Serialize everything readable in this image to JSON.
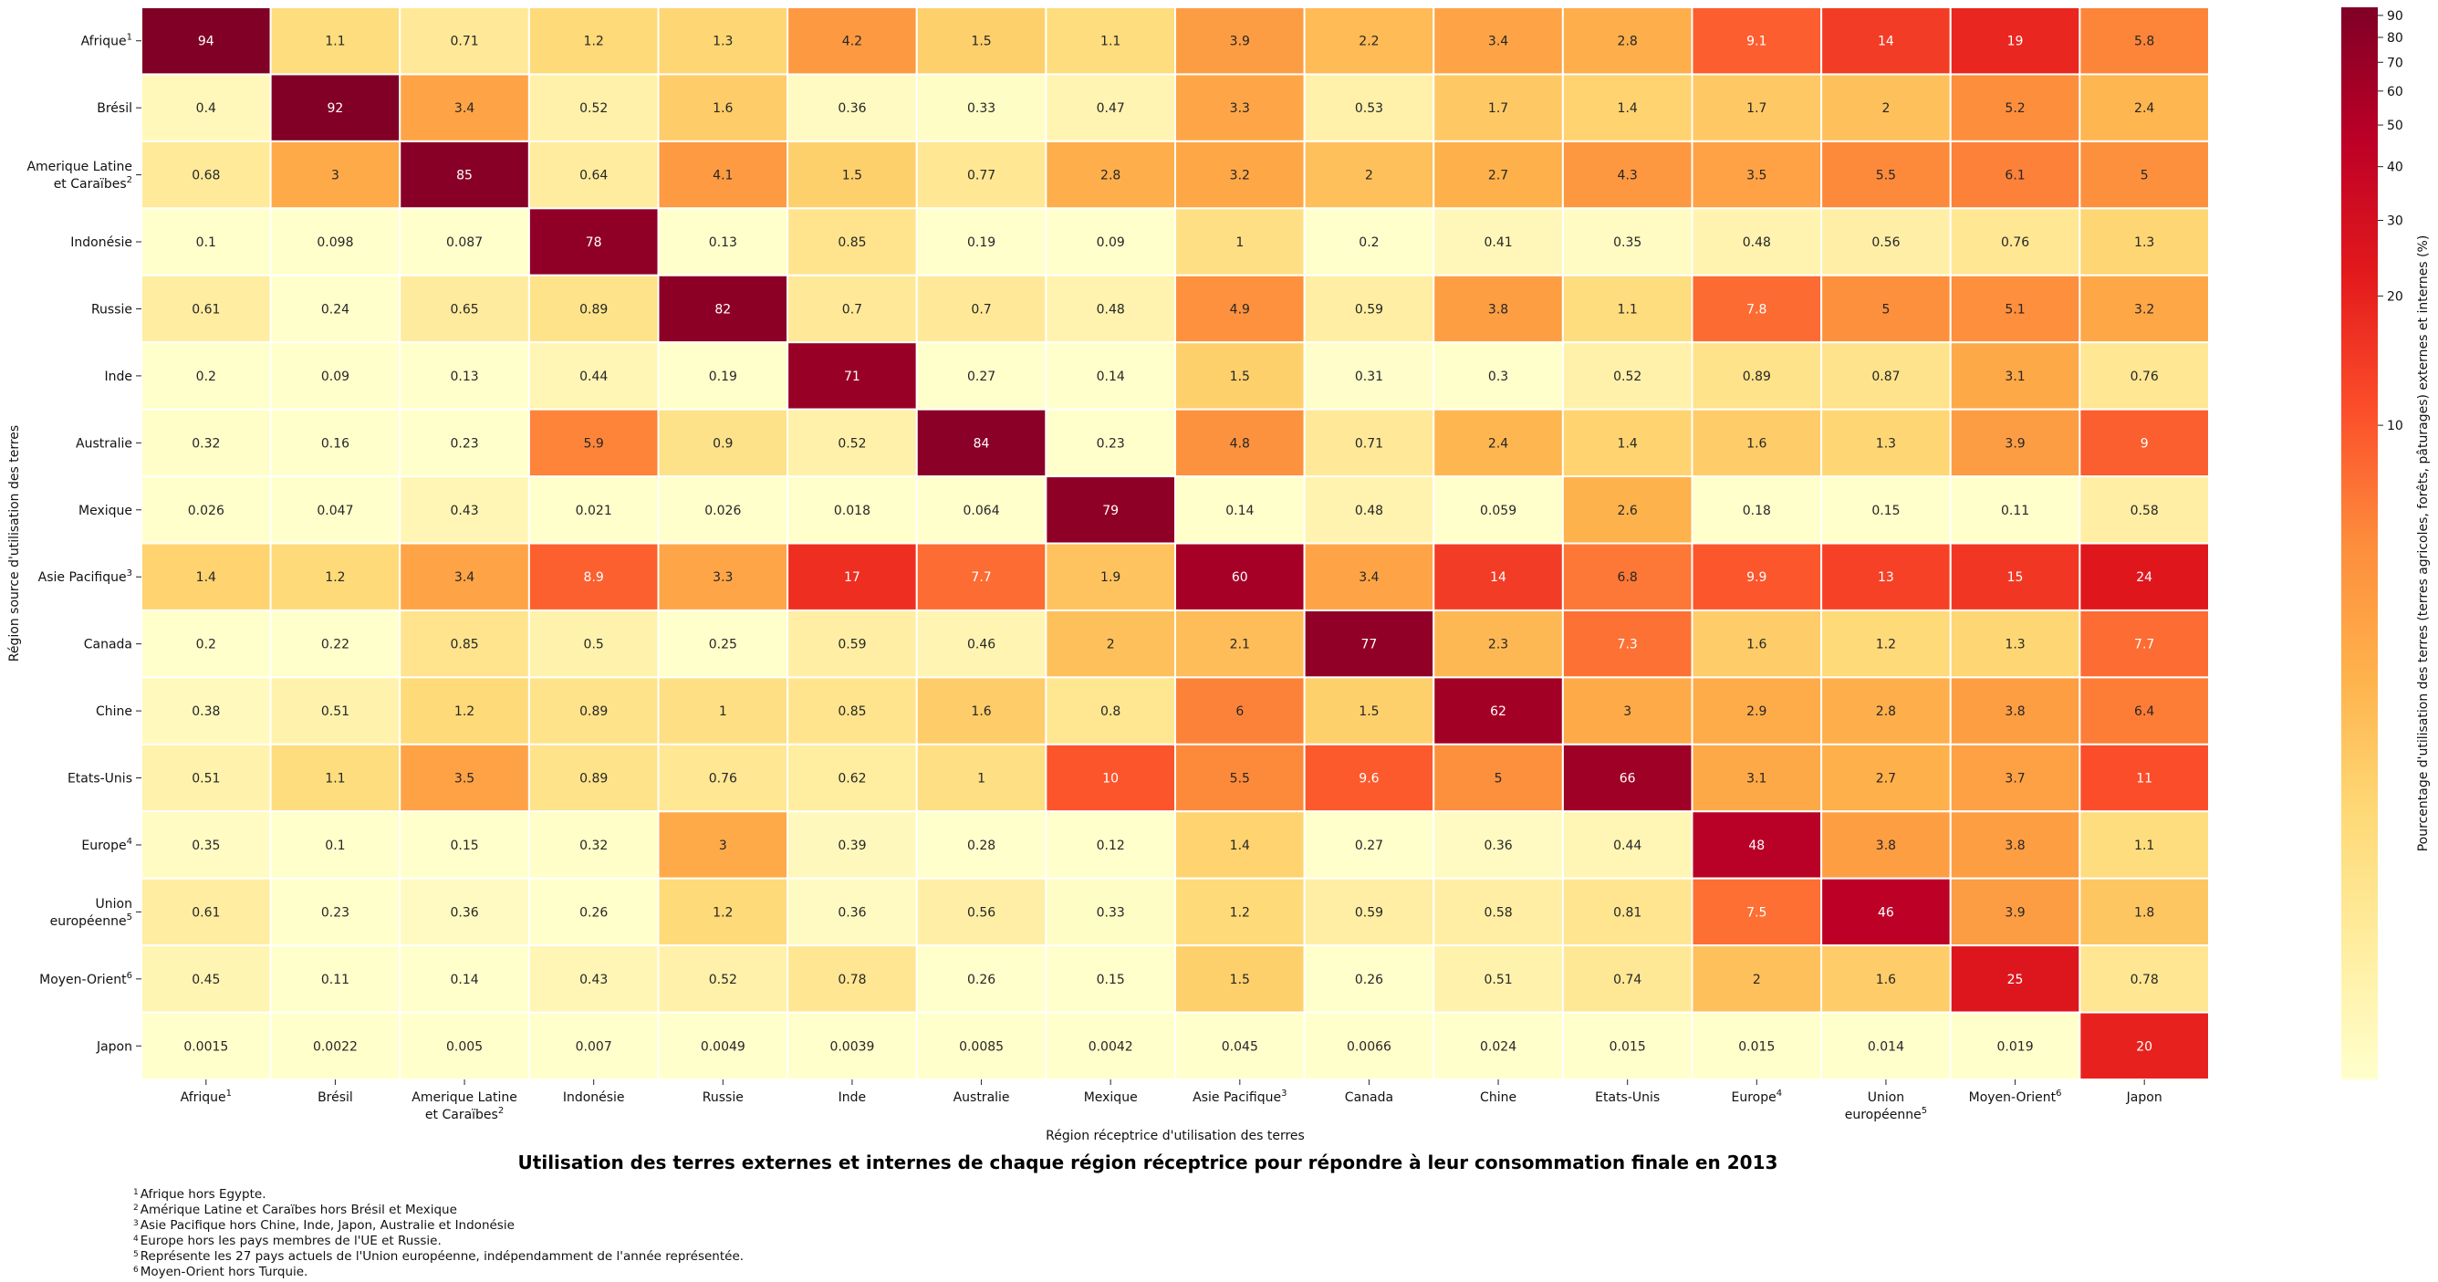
{
  "chart_data": {
    "type": "heatmap",
    "title": "Utilisation des terres externes et internes de chaque région réceptrice pour répondre à leur consommation finale en 2013",
    "xlabel": "Région réceptrice d'utilisation des terres",
    "ylabel": "Région source d'utilisation des terres",
    "colorbar_label": "Pourcentage d'utilisation des terres (terres agricoles, forêts, pâturages) externes et internes (%)",
    "colorbar_ticks": [
      10,
      20,
      30,
      40,
      50,
      60,
      70,
      80,
      90
    ],
    "colorbar_scale": "log",
    "colormap": "YlOrRd",
    "rows": [
      {
        "label": [
          "Afrique"
        ],
        "sup": "1"
      },
      {
        "label": [
          "Brésil"
        ],
        "sup": ""
      },
      {
        "label": [
          "Amerique Latine",
          "et Caraïbes"
        ],
        "sup": "2"
      },
      {
        "label": [
          "Indonésie"
        ],
        "sup": ""
      },
      {
        "label": [
          "Russie"
        ],
        "sup": ""
      },
      {
        "label": [
          "Inde"
        ],
        "sup": ""
      },
      {
        "label": [
          "Australie"
        ],
        "sup": ""
      },
      {
        "label": [
          "Mexique"
        ],
        "sup": ""
      },
      {
        "label": [
          "Asie Pacifique"
        ],
        "sup": "3"
      },
      {
        "label": [
          "Canada"
        ],
        "sup": ""
      },
      {
        "label": [
          "Chine"
        ],
        "sup": ""
      },
      {
        "label": [
          "Etats-Unis"
        ],
        "sup": ""
      },
      {
        "label": [
          "Europe"
        ],
        "sup": "4"
      },
      {
        "label": [
          "Union",
          "européenne"
        ],
        "sup": "5"
      },
      {
        "label": [
          "Moyen-Orient"
        ],
        "sup": "6"
      },
      {
        "label": [
          "Japon"
        ],
        "sup": ""
      }
    ],
    "columns": [
      {
        "label": [
          "Afrique"
        ],
        "sup": "1"
      },
      {
        "label": [
          "Brésil"
        ],
        "sup": ""
      },
      {
        "label": [
          "Amerique Latine",
          "et Caraïbes"
        ],
        "sup": "2"
      },
      {
        "label": [
          "Indonésie"
        ],
        "sup": ""
      },
      {
        "label": [
          "Russie"
        ],
        "sup": ""
      },
      {
        "label": [
          "Inde"
        ],
        "sup": ""
      },
      {
        "label": [
          "Australie"
        ],
        "sup": ""
      },
      {
        "label": [
          "Mexique"
        ],
        "sup": ""
      },
      {
        "label": [
          "Asie Pacifique"
        ],
        "sup": "3"
      },
      {
        "label": [
          "Canada"
        ],
        "sup": ""
      },
      {
        "label": [
          "Chine"
        ],
        "sup": ""
      },
      {
        "label": [
          "Etats-Unis"
        ],
        "sup": ""
      },
      {
        "label": [
          "Europe"
        ],
        "sup": "4"
      },
      {
        "label": [
          "Union",
          "européenne"
        ],
        "sup": "5"
      },
      {
        "label": [
          "Moyen-Orient"
        ],
        "sup": "6"
      },
      {
        "label": [
          "Japon"
        ],
        "sup": ""
      }
    ],
    "values": [
      [
        "94",
        "1.1",
        "0.71",
        "1.2",
        "1.3",
        "4.2",
        "1.5",
        "1.1",
        "3.9",
        "2.2",
        "3.4",
        "2.8",
        "9.1",
        "14",
        "19",
        "5.8"
      ],
      [
        "0.4",
        "92",
        "3.4",
        "0.52",
        "1.6",
        "0.36",
        "0.33",
        "0.47",
        "3.3",
        "0.53",
        "1.7",
        "1.4",
        "1.7",
        "2",
        "5.2",
        "2.4"
      ],
      [
        "0.68",
        "3",
        "85",
        "0.64",
        "4.1",
        "1.5",
        "0.77",
        "2.8",
        "3.2",
        "2",
        "2.7",
        "4.3",
        "3.5",
        "5.5",
        "6.1",
        "5"
      ],
      [
        "0.1",
        "0.098",
        "0.087",
        "78",
        "0.13",
        "0.85",
        "0.19",
        "0.09",
        "1",
        "0.2",
        "0.41",
        "0.35",
        "0.48",
        "0.56",
        "0.76",
        "1.3"
      ],
      [
        "0.61",
        "0.24",
        "0.65",
        "0.89",
        "82",
        "0.7",
        "0.7",
        "0.48",
        "4.9",
        "0.59",
        "3.8",
        "1.1",
        "7.8",
        "5",
        "5.1",
        "3.2"
      ],
      [
        "0.2",
        "0.09",
        "0.13",
        "0.44",
        "0.19",
        "71",
        "0.27",
        "0.14",
        "1.5",
        "0.31",
        "0.3",
        "0.52",
        "0.89",
        "0.87",
        "3.1",
        "0.76"
      ],
      [
        "0.32",
        "0.16",
        "0.23",
        "5.9",
        "0.9",
        "0.52",
        "84",
        "0.23",
        "4.8",
        "0.71",
        "2.4",
        "1.4",
        "1.6",
        "1.3",
        "3.9",
        "9"
      ],
      [
        "0.026",
        "0.047",
        "0.43",
        "0.021",
        "0.026",
        "0.018",
        "0.064",
        "79",
        "0.14",
        "0.48",
        "0.059",
        "2.6",
        "0.18",
        "0.15",
        "0.11",
        "0.58"
      ],
      [
        "1.4",
        "1.2",
        "3.4",
        "8.9",
        "3.3",
        "17",
        "7.7",
        "1.9",
        "60",
        "3.4",
        "14",
        "6.8",
        "9.9",
        "13",
        "15",
        "24"
      ],
      [
        "0.2",
        "0.22",
        "0.85",
        "0.5",
        "0.25",
        "0.59",
        "0.46",
        "2",
        "2.1",
        "77",
        "2.3",
        "7.3",
        "1.6",
        "1.2",
        "1.3",
        "7.7"
      ],
      [
        "0.38",
        "0.51",
        "1.2",
        "0.89",
        "1",
        "0.85",
        "1.6",
        "0.8",
        "6",
        "1.5",
        "62",
        "3",
        "2.9",
        "2.8",
        "3.8",
        "6.4"
      ],
      [
        "0.51",
        "1.1",
        "3.5",
        "0.89",
        "0.76",
        "0.62",
        "1",
        "10",
        "5.5",
        "9.6",
        "5",
        "66",
        "3.1",
        "2.7",
        "3.7",
        "11"
      ],
      [
        "0.35",
        "0.1",
        "0.15",
        "0.32",
        "3",
        "0.39",
        "0.28",
        "0.12",
        "1.4",
        "0.27",
        "0.36",
        "0.44",
        "48",
        "3.8",
        "3.8",
        "1.1"
      ],
      [
        "0.61",
        "0.23",
        "0.36",
        "0.26",
        "1.2",
        "0.36",
        "0.56",
        "0.33",
        "1.2",
        "0.59",
        "0.58",
        "0.81",
        "7.5",
        "46",
        "3.9",
        "1.8"
      ],
      [
        "0.45",
        "0.11",
        "0.14",
        "0.43",
        "0.52",
        "0.78",
        "0.26",
        "0.15",
        "1.5",
        "0.26",
        "0.51",
        "0.74",
        "2",
        "1.6",
        "25",
        "0.78"
      ],
      [
        "0.0015",
        "0.0022",
        "0.005",
        "0.007",
        "0.0049",
        "0.0039",
        "0.0085",
        "0.0042",
        "0.045",
        "0.0066",
        "0.024",
        "0.015",
        "0.015",
        "0.014",
        "0.019",
        "20"
      ]
    ]
  },
  "footnotes": [
    {
      "num": "1",
      "text": "Afrique hors Egypte."
    },
    {
      "num": "2",
      "text": "Amérique Latine et Caraïbes hors Brésil et Mexique"
    },
    {
      "num": "3",
      "text": "Asie Pacifique hors Chine, Inde, Japon, Australie et Indonésie"
    },
    {
      "num": "4",
      "text": "Europe hors les pays membres de l'UE et Russie."
    },
    {
      "num": "5",
      "text": "Représente les 27 pays actuels de l'Union européenne, indépendamment de l'année représentée."
    },
    {
      "num": "6",
      "text": "Moyen-Orient hors Turquie."
    }
  ]
}
